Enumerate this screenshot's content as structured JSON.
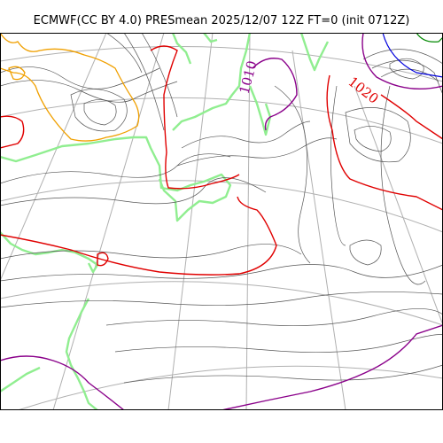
{
  "header": {
    "title": "ECMWF(CC BY 4.0) PRESmean 2025/12/07 12Z FT=0 (init 0712Z)"
  },
  "map": {
    "contour_labels": [
      {
        "text": "1010",
        "color": "#8a008a"
      },
      {
        "text": "1020",
        "color": "#e00000"
      }
    ],
    "colors": {
      "isobar": "#555555",
      "isobar_1010": "#8a008a",
      "isobar_1020": "#e00000",
      "high_core": "#0000dd",
      "warm_contour": "#f0a000",
      "coastline": "#90ee90",
      "graticule": "#b0b0b0"
    }
  }
}
